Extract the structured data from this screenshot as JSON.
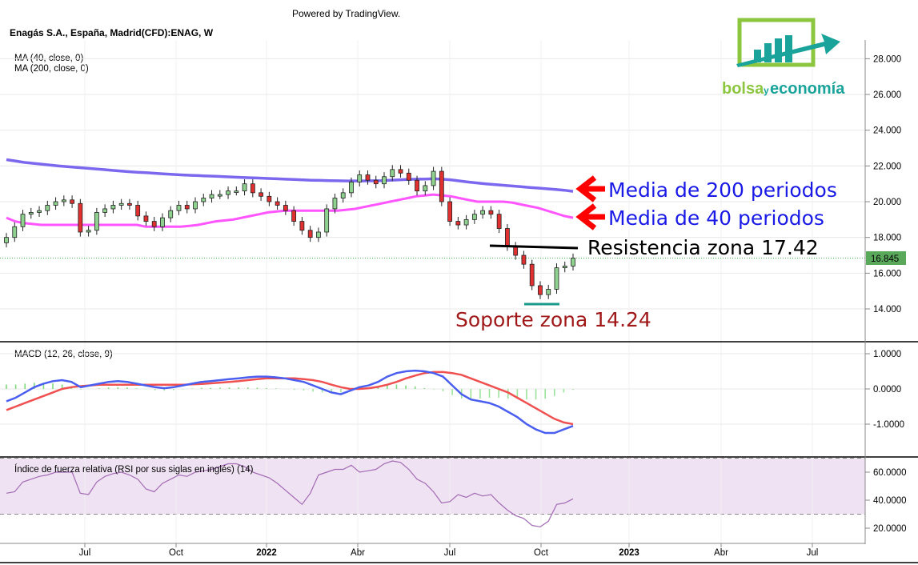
{
  "header": {
    "powered_by": "Powered by TradingView.",
    "symbol": "Enagás S.A., España, Madrid(CFD):ENAG, W",
    "ma40": "MA (40, close, 0)",
    "ma200": "MA (200, close, 0)",
    "macd": "MACD (12, 26, close, 9)",
    "rsi": "Índice de fuerza relativa (RSI por sus siglas en inglés) (14)"
  },
  "logo": {
    "text_main": "bolsa",
    "text_small": "y",
    "text_end": "economía",
    "green": "#8cc63f",
    "teal": "#1aa39a"
  },
  "annotations": {
    "ma200": "Media de 200 periodos",
    "ma40": "Media de 40 periodos",
    "resistance": "Resistencia zona 17.42",
    "support": "Soporte zona 14.24",
    "blue": "#1a1ae6",
    "red": "#ff0000",
    "black": "#000000",
    "darkred": "#a01818"
  },
  "chart_data": [
    {
      "type": "candlestick",
      "title": "Enagás S.A., España, Madrid(CFD):ENAG, W",
      "x_tick_labels": [
        "Jul",
        "Oct",
        "2022",
        "Abr",
        "Jul",
        "Oct",
        "2023",
        "Abr",
        "Jul"
      ],
      "y_tick_labels": [
        "14.000",
        "16.000",
        "18.000",
        "20.000",
        "22.000",
        "24.000",
        "26.000",
        "28.000"
      ],
      "ylim": [
        13,
        28.5
      ],
      "last_price": "16.845",
      "last_price_value": 16.845,
      "candles_close": [
        18.0,
        18.6,
        19.3,
        19.4,
        19.5,
        19.8,
        20.0,
        20.1,
        19.9,
        18.3,
        18.4,
        19.4,
        19.6,
        19.8,
        19.9,
        19.8,
        19.2,
        18.9,
        18.6,
        19.1,
        19.5,
        19.8,
        19.6,
        20.0,
        20.2,
        20.4,
        20.4,
        20.6,
        20.6,
        21.0,
        20.5,
        20.3,
        20.0,
        19.8,
        19.5,
        18.9,
        18.4,
        18.0,
        18.3,
        19.6,
        20.2,
        20.5,
        21.1,
        21.5,
        21.2,
        21.0,
        21.4,
        21.8,
        21.6,
        21.2,
        20.6,
        20.9,
        21.7,
        20.0,
        18.9,
        18.7,
        19.0,
        19.3,
        19.5,
        19.3,
        18.5,
        17.5,
        17.0,
        16.5,
        15.3,
        14.8,
        15.1,
        16.3,
        16.4,
        16.845
      ],
      "ma40": [
        19.1,
        18.9,
        18.8,
        18.75,
        18.7,
        18.7,
        18.7,
        18.7,
        18.7,
        18.7,
        18.7,
        18.7,
        18.7,
        18.7,
        18.7,
        18.7,
        18.6,
        18.6,
        18.6,
        18.6,
        18.6,
        18.65,
        18.7,
        18.8,
        18.9,
        18.95,
        19.0,
        19.1,
        19.2,
        19.3,
        19.4,
        19.45,
        19.5,
        19.5,
        19.5,
        19.5,
        19.5,
        19.5,
        19.5,
        19.55,
        19.6,
        19.7,
        19.8,
        19.9,
        20.0,
        20.1,
        20.2,
        20.3,
        20.35,
        20.4,
        20.35,
        20.3,
        20.2,
        20.1,
        20.0,
        20.0,
        20.0,
        20.0,
        19.95,
        19.85,
        19.75,
        19.65,
        19.5,
        19.35,
        19.2,
        19.1
      ],
      "ma200": [
        22.35,
        22.28,
        22.2,
        22.15,
        22.1,
        22.05,
        22.0,
        21.96,
        21.92,
        21.88,
        21.84,
        21.8,
        21.76,
        21.72,
        21.68,
        21.65,
        21.62,
        21.59,
        21.56,
        21.53,
        21.5,
        21.48,
        21.46,
        21.44,
        21.42,
        21.4,
        21.38,
        21.36,
        21.34,
        21.32,
        21.3,
        21.28,
        21.26,
        21.24,
        21.22,
        21.2,
        21.19,
        21.18,
        21.17,
        21.16,
        21.16,
        21.16,
        21.17,
        21.18,
        21.2,
        21.22,
        21.24,
        21.26,
        21.27,
        21.28,
        21.26,
        21.22,
        21.16,
        21.1,
        21.05,
        21.0,
        20.96,
        20.92,
        20.88,
        20.84,
        20.8,
        20.76,
        20.72,
        20.68,
        20.64,
        20.58
      ]
    },
    {
      "type": "line",
      "title": "MACD (12, 26, close, 9)",
      "y_tick_labels": [
        "1.0000",
        "0.0000",
        "-1.0000"
      ],
      "ylim": [
        -1.6,
        1.25
      ],
      "macd": [
        -0.35,
        -0.25,
        -0.1,
        0.05,
        0.15,
        0.22,
        0.25,
        0.2,
        0.05,
        0.1,
        0.15,
        0.2,
        0.22,
        0.2,
        0.15,
        0.1,
        0.05,
        0.02,
        0.05,
        0.1,
        0.15,
        0.2,
        0.22,
        0.25,
        0.28,
        0.3,
        0.33,
        0.35,
        0.35,
        0.33,
        0.3,
        0.25,
        0.2,
        0.1,
        0.0,
        -0.1,
        -0.15,
        -0.05,
        0.05,
        0.1,
        0.2,
        0.35,
        0.45,
        0.5,
        0.52,
        0.5,
        0.45,
        0.35,
        0.1,
        -0.15,
        -0.3,
        -0.35,
        -0.4,
        -0.5,
        -0.65,
        -0.8,
        -1.0,
        -1.15,
        -1.25,
        -1.25,
        -1.15,
        -1.05
      ],
      "signal": [
        -0.6,
        -0.5,
        -0.4,
        -0.3,
        -0.2,
        -0.1,
        0.0,
        0.05,
        0.08,
        0.1,
        0.12,
        0.12,
        0.12,
        0.12,
        0.12,
        0.12,
        0.12,
        0.12,
        0.12,
        0.12,
        0.13,
        0.14,
        0.16,
        0.18,
        0.2,
        0.22,
        0.25,
        0.28,
        0.3,
        0.3,
        0.3,
        0.3,
        0.28,
        0.25,
        0.2,
        0.12,
        0.05,
        0.0,
        0.0,
        0.02,
        0.06,
        0.12,
        0.2,
        0.3,
        0.38,
        0.45,
        0.48,
        0.48,
        0.45,
        0.4,
        0.3,
        0.2,
        0.1,
        0.0,
        -0.1,
        -0.25,
        -0.4,
        -0.55,
        -0.7,
        -0.85,
        -0.95,
        -1.0
      ]
    },
    {
      "type": "line",
      "title": "Índice de fuerza relativa (RSI por sus siglas en inglés) (14)",
      "y_tick_labels": [
        "60.0000",
        "40.0000",
        "20.0000"
      ],
      "ylim": [
        10,
        70
      ],
      "band": [
        30,
        70
      ],
      "rsi": [
        45,
        46,
        53,
        55,
        57,
        58,
        60,
        60,
        60,
        45,
        44,
        53,
        57,
        59,
        60,
        58,
        55,
        48,
        46,
        52,
        55,
        58,
        57,
        60,
        61,
        62,
        64,
        66,
        66,
        64,
        60,
        58,
        56,
        52,
        47,
        42,
        37,
        45,
        58,
        60,
        62,
        62,
        65,
        60,
        61,
        62,
        66,
        68,
        67,
        62,
        55,
        52,
        46,
        38,
        39,
        44,
        42,
        45,
        43,
        44,
        38,
        33,
        29,
        27,
        22,
        21,
        25,
        37,
        38,
        41
      ]
    }
  ]
}
